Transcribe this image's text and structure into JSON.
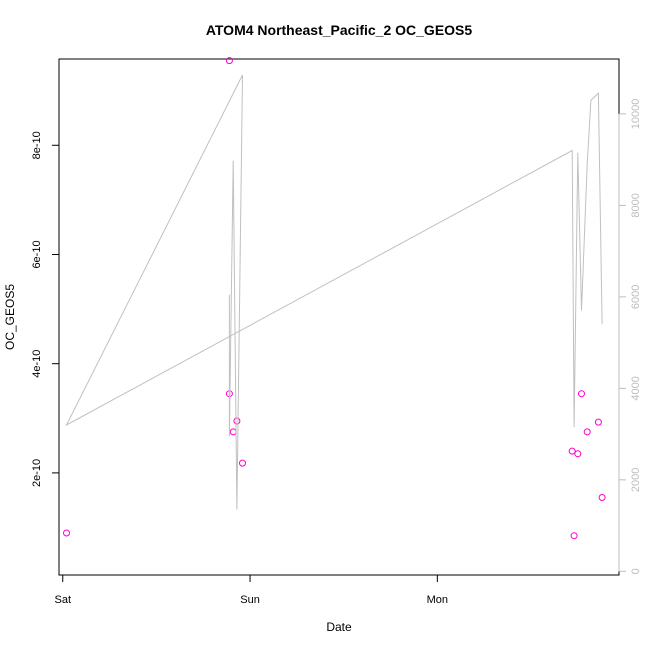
{
  "chart_data": {
    "type": "scatter",
    "title": "ATOM4 Northeast_Pacific_2 OC_GEOS5",
    "xlabel": "Date",
    "ylabel": "OC_GEOS5",
    "x_ticks": [
      {
        "label": "Sat",
        "value": 0
      },
      {
        "label": "Sun",
        "value": 1
      },
      {
        "label": "Mon",
        "value": 2
      }
    ],
    "xlim": [
      -0.02,
      2.97
    ],
    "ylim": [
      1.3e-11,
      9.58e-10
    ],
    "y_ticks": [
      {
        "label": "2e-10",
        "value": 2e-10
      },
      {
        "label": "4e-10",
        "value": 4e-10
      },
      {
        "label": "6e-10",
        "value": 6e-10
      },
      {
        "label": "8e-10",
        "value": 8e-10
      }
    ],
    "y2lim": [
      -80,
      11200
    ],
    "y2_ticks": [
      {
        "label": "0",
        "value": 0
      },
      {
        "label": "2000",
        "value": 2000
      },
      {
        "label": "4000",
        "value": 4000
      },
      {
        "label": "6000",
        "value": 6000
      },
      {
        "label": "8000",
        "value": 8000
      },
      {
        "label": "10000",
        "value": 10000
      }
    ],
    "series": [
      {
        "kind": "points",
        "axis": "left",
        "color": "#ff00cc",
        "x": [
          0.02,
          0.89,
          0.89,
          0.91,
          0.93,
          0.96,
          2.72,
          2.73,
          2.75,
          2.77,
          2.8,
          2.86,
          2.88
        ],
        "y": [
          9e-11,
          9.55e-10,
          3.45e-10,
          2.75e-10,
          2.95e-10,
          2.18e-10,
          2.4e-10,
          8.5e-11,
          2.35e-10,
          3.45e-10,
          2.75e-10,
          2.93e-10,
          1.55e-10
        ]
      },
      {
        "kind": "line",
        "axis": "right",
        "color": "#c0c0c0",
        "x": [
          0.89,
          0.89,
          0.91,
          0.93,
          0.96,
          0.02,
          2.72,
          2.73,
          2.75,
          2.77,
          2.8,
          2.82,
          2.86,
          2.88
        ],
        "y": [
          6050,
          2950,
          8980,
          1350,
          10850,
          3200,
          9200,
          3150,
          9150,
          5700,
          8900,
          10300,
          10450,
          5400
        ]
      }
    ]
  }
}
